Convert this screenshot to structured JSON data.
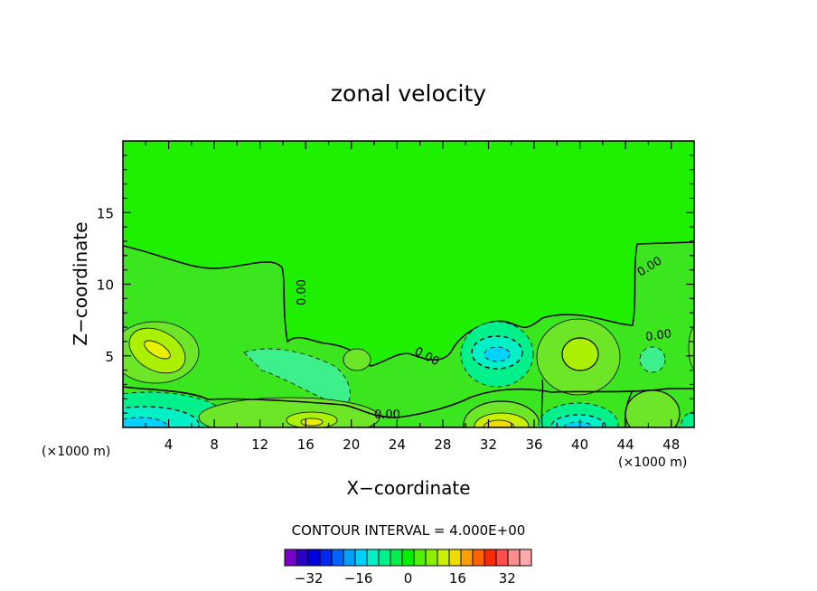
{
  "chart_data": {
    "type": "heatmap",
    "title": "zonal velocity",
    "xlabel": "X−coordinate",
    "ylabel": "Z−coordinate",
    "x_unit_left": "(×1000 m)",
    "x_unit_right": "(×1000 m)",
    "xlim": [
      0,
      50
    ],
    "ylim": [
      0,
      20
    ],
    "x_ticks": [
      4,
      8,
      12,
      16,
      20,
      24,
      28,
      32,
      36,
      40,
      44,
      48
    ],
    "y_ticks": [
      5,
      10,
      15
    ],
    "contour_interval_text": "CONTOUR INTERVAL = 4.000E+00",
    "contour_labels": [
      "0.00",
      "0.00",
      "0.00",
      "0.00",
      "0.00",
      "0.00"
    ],
    "colorbar": {
      "levels": [
        -36,
        -32,
        -28,
        -24,
        -20,
        -16,
        -12,
        -8,
        -4,
        0,
        4,
        8,
        12,
        16,
        20,
        24,
        28,
        32,
        36
      ],
      "tick_labels": [
        "−32",
        "−16",
        "0",
        "16",
        "32"
      ],
      "tick_values": [
        -32,
        -16,
        0,
        16,
        32
      ],
      "colors": [
        "#7a00c8",
        "#2a00c8",
        "#0000dc",
        "#0028f0",
        "#0064ff",
        "#00a0ff",
        "#00d2ff",
        "#00f0c8",
        "#00f08c",
        "#00f050",
        "#00f000",
        "#50f000",
        "#8cf000",
        "#c8f000",
        "#f0dc00",
        "#ffa000",
        "#ff6400",
        "#ff2800",
        "#ff5050",
        "#ff8c8c",
        "#ffaaaa"
      ]
    },
    "features": [
      {
        "name": "positive-core-left",
        "x": 4.5,
        "z": 5.3,
        "value": 10
      },
      {
        "name": "negative-core-bottom-left",
        "x": 3,
        "z": 0.3,
        "value": -12
      },
      {
        "name": "positive-core-bottom-mid",
        "x": 17,
        "z": 0.5,
        "value": 10
      },
      {
        "name": "negative-core-mid",
        "x": 33,
        "z": 5.0,
        "value": -10
      },
      {
        "name": "positive-core-bottom-right",
        "x": 33,
        "z": 0.3,
        "value": 18
      },
      {
        "name": "positive-core-right",
        "x": 40.5,
        "z": 5.3,
        "value": 10
      },
      {
        "name": "negative-core-bottom-right",
        "x": 40.5,
        "z": 0.5,
        "value": -10
      }
    ]
  }
}
